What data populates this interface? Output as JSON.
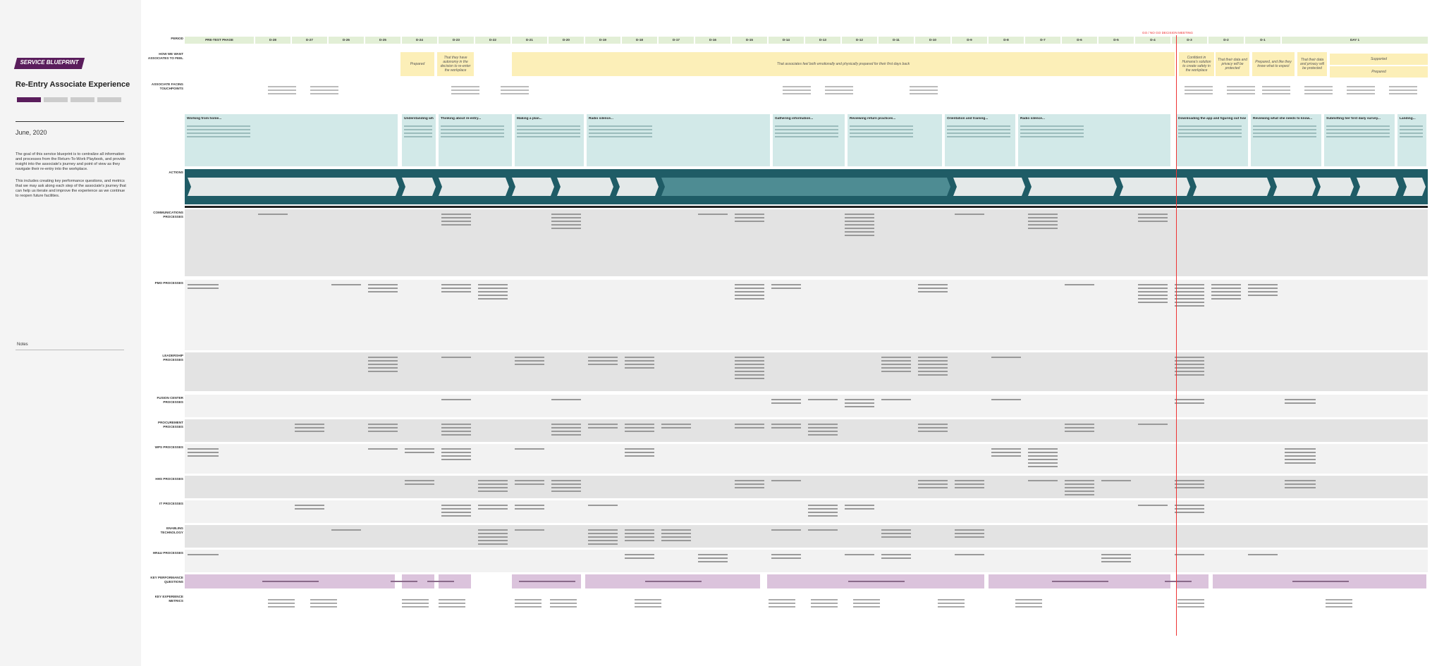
{
  "sidebar": {
    "tag": "SERVICE BLUEPRINT",
    "title": "Re-Entry Associate Experience",
    "date": "June, 2020",
    "paragraphs": [
      "The goal of this service blueprint is to centralize all information and processes from the Return-To-Work Playbook, and provide insight into the associate's journey and point of view as they navigate their re-entry into the workplace.",
      "This includes creating key performance questions, and metrics that we may ask along each step of the associate's journey that can help us iterate and improve the experience as we continue to reopen future facilities."
    ],
    "notes": "Notes"
  },
  "decision": "GO / NO GO DECISION MEETING",
  "periods": [
    "PRE-TEST PHASE",
    "D-28",
    "D-27",
    "D-26",
    "D-25",
    "D-24",
    "D-23",
    "D-22",
    "D-21",
    "D-20",
    "D-19",
    "D-18",
    "D-17",
    "D-16",
    "D-15",
    "D-14",
    "D-13",
    "D-12",
    "D-11",
    "D-10",
    "D-9",
    "D-8",
    "D-7",
    "D-6",
    "D-5",
    "D-4",
    "D-3",
    "D-2",
    "D-1",
    "DAY 1"
  ],
  "row_labels": [
    "PERIOD",
    "HOW WE WANT ASSOCIATES TO FEEL",
    "ASSOCIATE FACING TOUCHPOINTS",
    "ACTIONS",
    "COMMUNICATIONS PROCESSES",
    "PMO PROCESSES",
    "LEADERSHIP PROCESSES",
    "FUSION CENTER PROCESSES",
    "PROCUREMENT PROCESSES",
    "WPS PROCESSES",
    "HHS PROCESSES",
    "IT PROCESSES",
    "ENABLING TECHNOLOGY",
    "HR&U PROCESSES",
    "KEY PERFORMANCE QUESTIONS",
    "KEY EXPERIENCE METRICS"
  ],
  "feel": [
    "Prepared",
    "That they have autonomy in the decision to re-enter the workplace",
    "That associates feel both emotionally and physically prepared for their first days back",
    "Confident in Humana's solution to create safety in the workplace",
    "That their data and privacy will be protected",
    "Prepared, and like they know what to expect",
    "That their data and privacy will be protected",
    "Supported",
    "Prepared"
  ],
  "stories": [
    "Working from home...",
    "Understanding what to expect...",
    "Thinking about re-entry...",
    "Making a plan...",
    "Radio silence...",
    "Gathering information...",
    "Reviewing return practices...",
    "Orientation and training...",
    "Radio silence...",
    "Downloading the app and figuring out how to use it...",
    "Reviewing what she needs to know...",
    "Submitting her first daily survey...",
    "Landing..."
  ]
}
